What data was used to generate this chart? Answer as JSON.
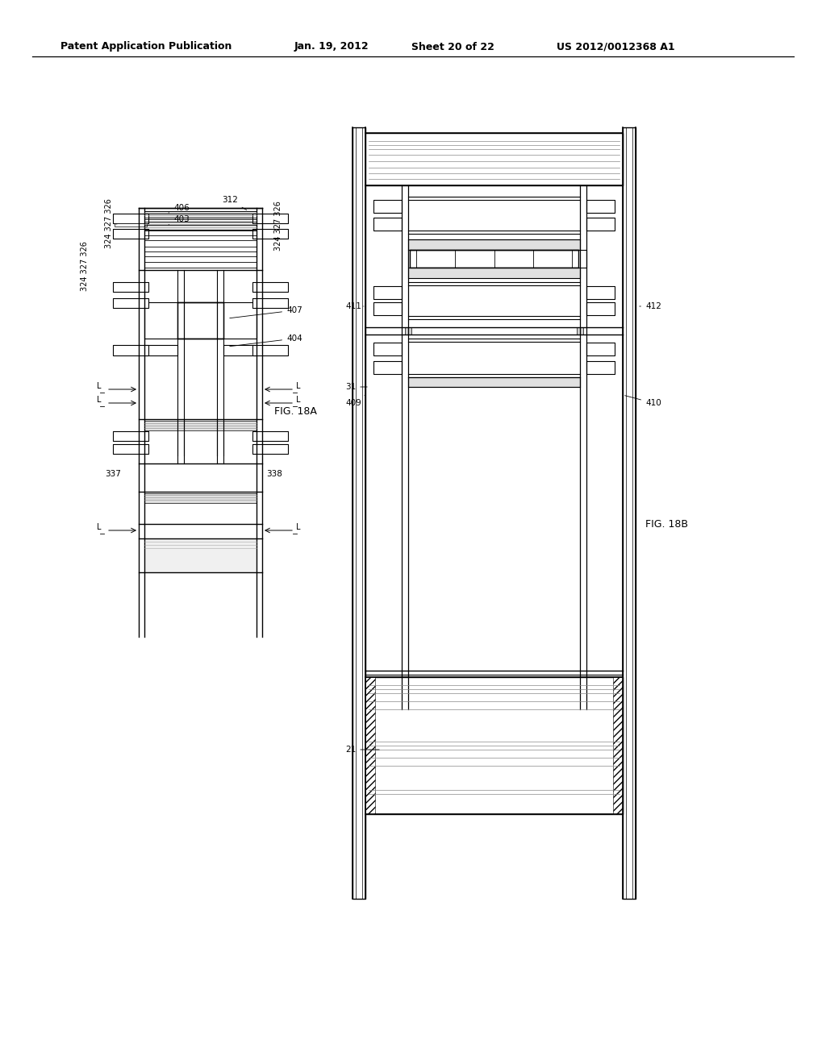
{
  "background_color": "#ffffff",
  "header_text": "Patent Application Publication",
  "header_date": "Jan. 19, 2012",
  "header_sheet": "Sheet 20 of 22",
  "header_patent": "US 2012/0012368 A1",
  "fig18a_label": "FIG. 18A",
  "fig18b_label": "FIG. 18B"
}
